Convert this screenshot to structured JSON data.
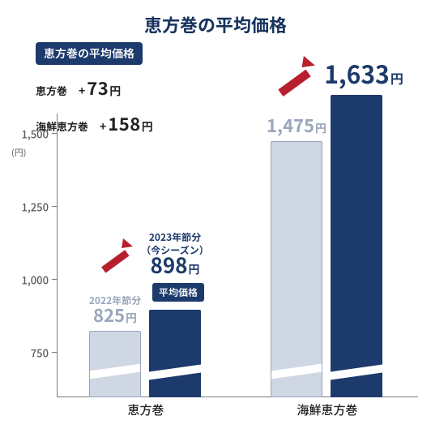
{
  "title": "恵方巻の平均価格",
  "title_color": "#17335d",
  "axis_color": "#7b7b7b",
  "bar1_color": "#cfd7e4",
  "bar1_border": "#9aa6bb",
  "bar2_color": "#1c3a6b",
  "badge_bg": "#1c3a6b",
  "val_light_color": "#9aa6bb",
  "val_dark_color": "#1c3a6b",
  "arrow_color": "#b81f2d",
  "infobox": {
    "badge": "恵方巻の平均価格",
    "row1": {
      "label": "恵方巻",
      "diff": "73",
      "unit": "円"
    },
    "row2": {
      "label": "海鮮恵方巻",
      "diff": "158",
      "unit": "円"
    }
  },
  "y": {
    "unit_label": "(円)",
    "ticks": [
      {
        "v": 750,
        "label": "750"
      },
      {
        "v": 1000,
        "label": "1,000"
      },
      {
        "v": 1250,
        "label": "1,250"
      },
      {
        "v": 1500,
        "label": "1,500"
      }
    ]
  },
  "group1": {
    "category": "恵方巻",
    "sub_2022": "2022年節分",
    "sub_2023a": "2023年節分",
    "sub_2023b": "（今シーズン）",
    "v2022": "825",
    "v2023": "898",
    "unit": "円",
    "avg_badge": "平均価格"
  },
  "group2": {
    "category": "海鮮恵方巻",
    "v2022": "1,475",
    "v2023": "1,633",
    "unit": "円"
  }
}
